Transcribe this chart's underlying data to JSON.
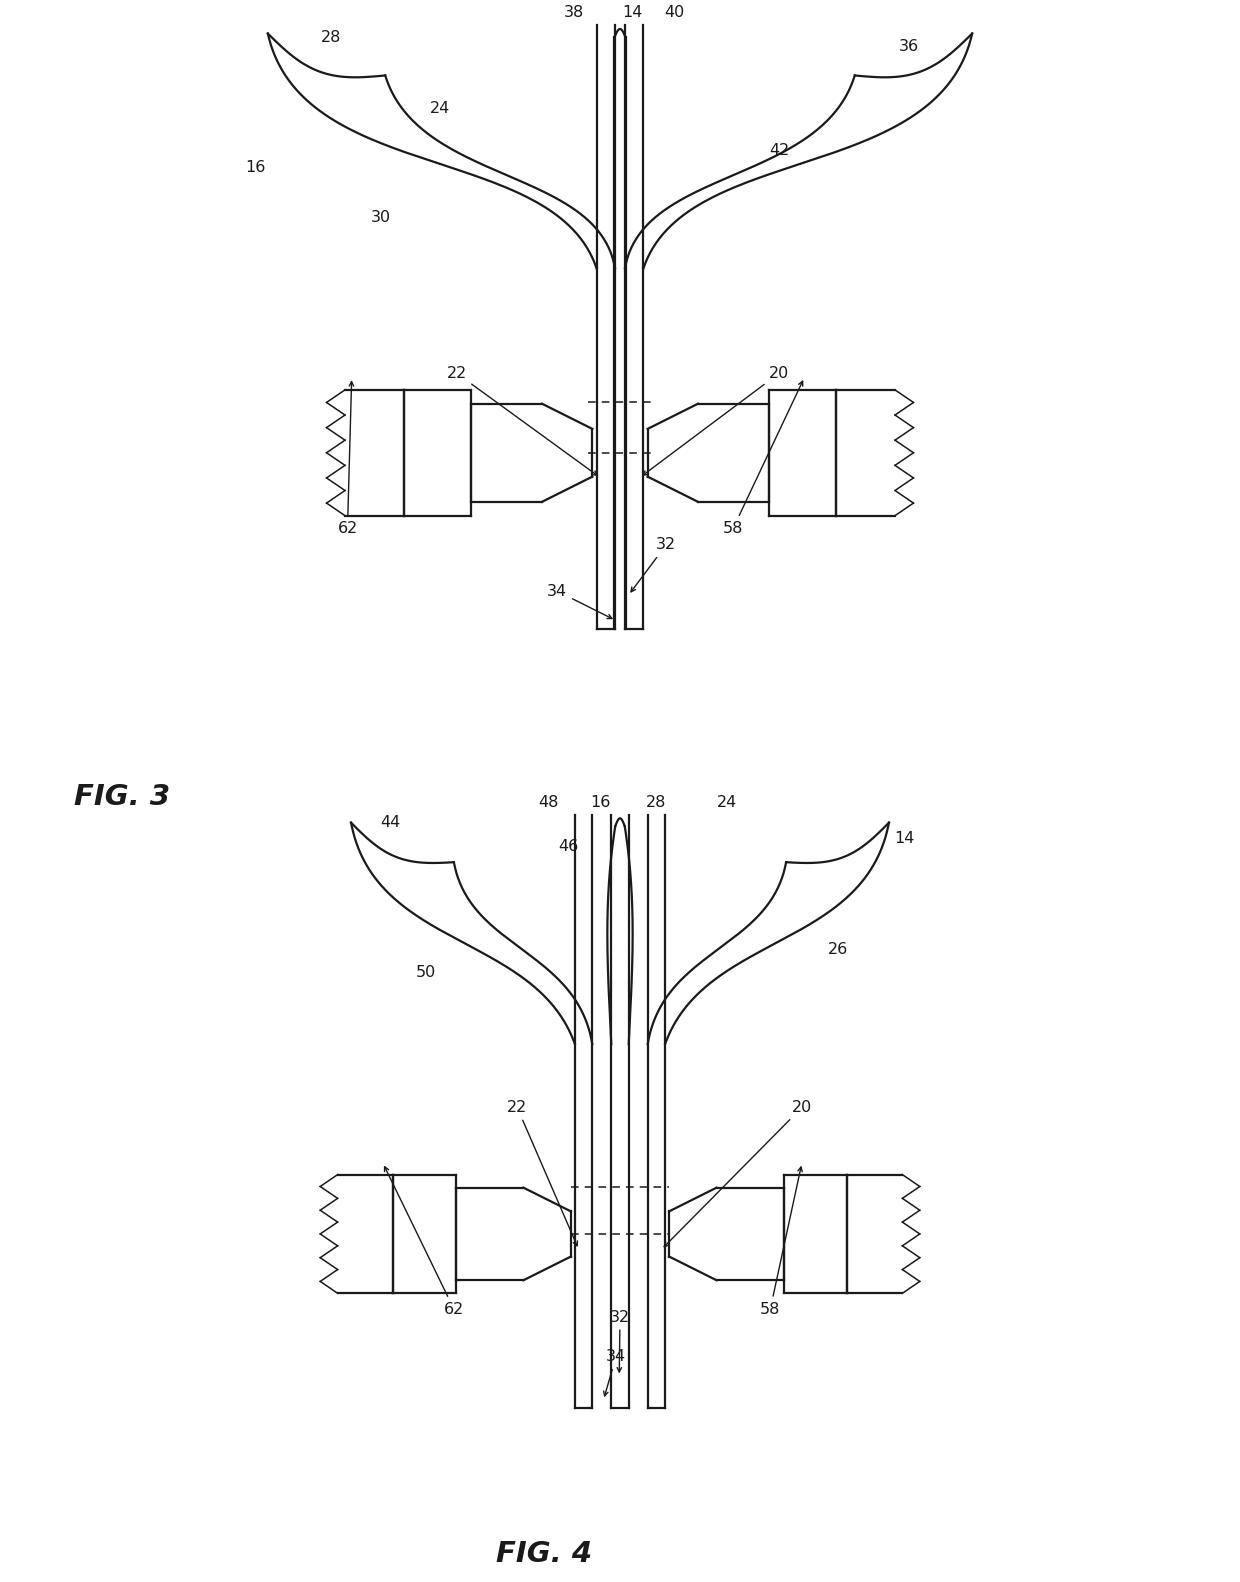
{
  "fig_width": 12.4,
  "fig_height": 15.82,
  "bg_color": "#ffffff",
  "line_color": "#1a1a1a",
  "line_width": 1.6,
  "thin_line": 1.1,
  "fig3_label": "FIG. 3",
  "fig4_label": "FIG. 4"
}
